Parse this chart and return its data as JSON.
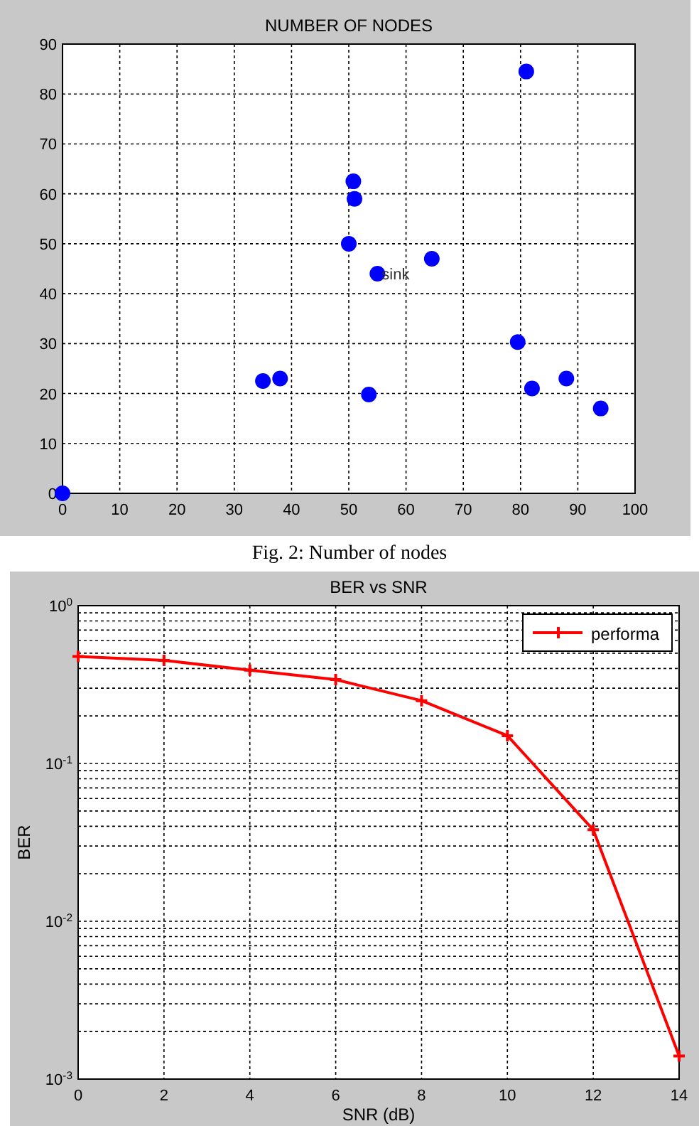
{
  "chart_data": [
    {
      "type": "scatter",
      "title": "NUMBER OF NODES",
      "x": [
        0,
        35,
        38,
        50,
        50.8,
        51,
        53.5,
        55,
        64.5,
        79.5,
        81,
        82,
        88,
        94
      ],
      "series": [
        {
          "color": "#0000ff",
          "values": [
            0,
            22.5,
            23,
            50,
            62.5,
            59,
            19.8,
            44,
            47,
            30.3,
            84.5,
            21,
            23,
            17
          ]
        }
      ],
      "xlim": [
        0,
        100
      ],
      "xticks": [
        0,
        10,
        20,
        30,
        40,
        50,
        60,
        70,
        80,
        90,
        100
      ],
      "ylim": [
        0,
        90
      ],
      "yticks": [
        0,
        10,
        20,
        30,
        40,
        50,
        60,
        70,
        80,
        90
      ],
      "grid": true,
      "marker": "circle",
      "annotations": [
        {
          "text": "sink",
          "x": 55,
          "y": 44
        },
        "Fig. 2: Number of nodes"
      ]
    },
    {
      "type": "line",
      "title": "BER vs SNR",
      "xlabel": "SNR (dB)",
      "ylabel": "BER",
      "x": [
        0,
        2,
        4,
        6,
        8,
        10,
        12,
        14
      ],
      "series": [
        {
          "name": "performa",
          "color": "#ff0000",
          "values": [
            0.476,
            0.45,
            0.39,
            0.34,
            0.25,
            0.15,
            0.038,
            0.0014
          ]
        }
      ],
      "xlim": [
        0,
        14
      ],
      "xticks": [
        0,
        2,
        4,
        6,
        8,
        10,
        12,
        14
      ],
      "ylim": [
        0.001,
        1
      ],
      "yticks": [
        {
          "value": 0.001,
          "label": "10$^{-3}$"
        },
        {
          "value": 0.01,
          "label": "10$^{-2}$"
        },
        {
          "value": 0.1,
          "label": "10$^{-1}$"
        },
        {
          "value": 1,
          "label": "10$^{0}$"
        }
      ],
      "log": "y",
      "grid": true,
      "marker": "cross",
      "line_style": "solid",
      "legend": "top right"
    }
  ]
}
